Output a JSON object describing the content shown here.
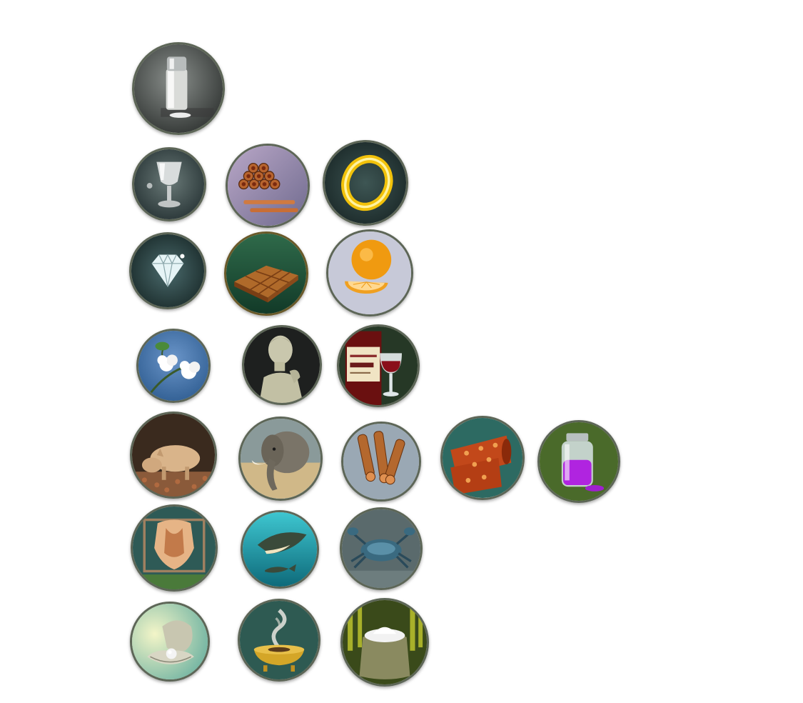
{
  "sheet": {
    "background": "#ffffff",
    "rows": [
      [
        {
          "id": "salt",
          "icon": "salt-shaker-icon",
          "bg": [
            "#8a8f8c",
            "#2c302e"
          ]
        }
      ],
      [
        {
          "id": "silver",
          "icon": "silver-goblet-icon",
          "bg": [
            "#6a7a78",
            "#1e2a2c"
          ]
        },
        {
          "id": "copper",
          "icon": "copper-pipes-icon",
          "bg": [
            "#b9a7c7",
            "#6f6a8e"
          ]
        },
        {
          "id": "gold",
          "icon": "gold-ring-icon",
          "bg": [
            "#3e5654",
            "#142020"
          ]
        }
      ],
      [
        {
          "id": "diamonds",
          "icon": "diamond-icon",
          "bg": [
            "#4a6a6c",
            "#12201f"
          ]
        },
        {
          "id": "cocoa",
          "icon": "chocolate-bar-icon",
          "bg": [
            "#2f6a4a",
            "#123a28"
          ]
        },
        {
          "id": "citrus",
          "icon": "orange-fruit-icon",
          "bg": [
            "#d9d9e2",
            "#9a9db4"
          ]
        }
      ],
      [
        {
          "id": "cotton",
          "icon": "cotton-plant-icon",
          "bg": [
            "#6a95c9",
            "#2c5a8e"
          ]
        },
        {
          "id": "marble",
          "icon": "marble-statue-icon",
          "bg": [
            "#2d2f2e",
            "#0f1110"
          ]
        },
        {
          "id": "wine",
          "icon": "wine-bottle-glass-icon",
          "bg": [
            "#3e5a3a",
            "#1a2a1a"
          ]
        }
      ],
      [
        {
          "id": "truffles",
          "icon": "truffle-pig-icon",
          "bg": [
            "#5a4030",
            "#2a1e16"
          ]
        },
        {
          "id": "ivory",
          "icon": "elephant-icon",
          "bg": [
            "#c8b487",
            "#7f8a8a"
          ]
        },
        {
          "id": "spices",
          "icon": "cinnamon-sticks-icon",
          "bg": [
            "#a8b4bf",
            "#6a7986"
          ]
        },
        {
          "id": "silk",
          "icon": "silk-cloth-icon",
          "bg": [
            "#3a8a7e",
            "#1c4f48"
          ]
        },
        {
          "id": "dyes",
          "icon": "dye-jar-icon",
          "bg": [
            "#6a8a3a",
            "#2e4a1a"
          ]
        }
      ],
      [
        {
          "id": "furs",
          "icon": "fur-pelt-icon",
          "bg": [
            "#3a6a66",
            "#1a2e2c"
          ]
        },
        {
          "id": "whales",
          "icon": "whale-icon",
          "bg": [
            "#3ec6d0",
            "#0e6a7a"
          ]
        },
        {
          "id": "crabs",
          "icon": "crab-icon",
          "bg": [
            "#7a8a8c",
            "#2c3436"
          ]
        }
      ],
      [
        {
          "id": "pearls",
          "icon": "pearl-oyster-icon",
          "bg": [
            "#f3f5c8",
            "#6ab0a0"
          ]
        },
        {
          "id": "incense",
          "icon": "incense-burner-icon",
          "bg": [
            "#4a7a70",
            "#1e3a34"
          ]
        },
        {
          "id": "sugar",
          "icon": "sugar-sack-icon",
          "bg": [
            "#6a7a2a",
            "#2a3a12"
          ]
        }
      ]
    ]
  }
}
